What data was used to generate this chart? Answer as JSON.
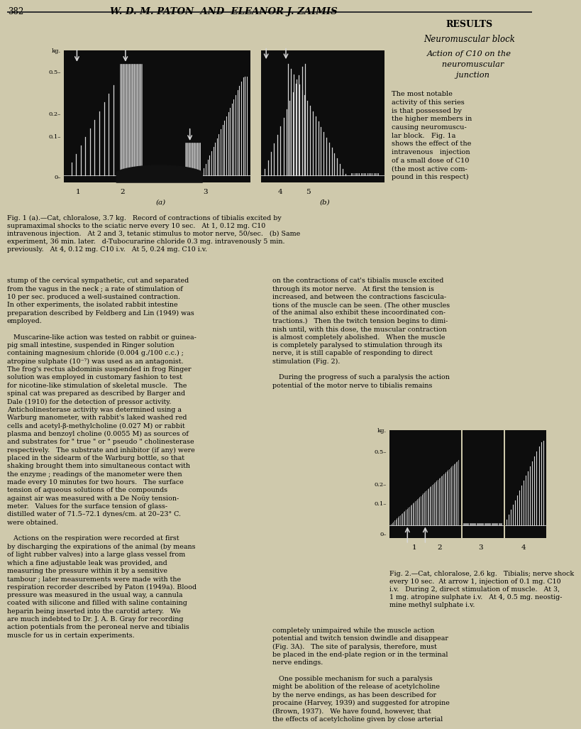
{
  "page_bg": "#cfc9ac",
  "fig_bg": "#0d0d0d",
  "fig_line_color": "#d8d8d8",
  "page_number": "382",
  "header_title": "W. D. M. PATON  AND  ELEANOR J. ZAIMIS",
  "results_heading": "RESULTS",
  "neuromuscular_heading": "Neuromuscular block",
  "action_heading": "Action of C10 on the\n   neuromuscular\n   junction",
  "right_body_text": "The most notable\nactivity of this series\nis that possessed by\nthe higher members in\ncausing neuromuscu-\nlar block.   Fig. 1a\nshows the effect of the\nintravenous   injection\nof a small dose of C10\n(the most active com-\npound in this respect)",
  "fig1_caption": "Fig. 1 (a).—Cat, chloralose, 3.7 kg.   Record of contractions of tibialis excited by\nsupramaximal shocks to the sciatic nerve every 10 sec.   At 1, 0.12 mg. C10\nintravenous injection.   At 2 and 3, tetanic stimulus to motor nerve, 50/sec.   (b) Same\nexperiment, 36 min. later.   d-Tubocurarine chloride 0.3 mg. intravenously 5 min.\npreviously.   At 4, 0.12 mg. C10 i.v.   At 5, 0.24 mg. C10 i.v.",
  "fig2_caption": "Fig. 2.—Cat, chloralose, 2.6 kg.   Tibialis; nerve shock\nevery 10 sec.  At arrow 1, injection of 0.1 mg. C10\ni.v.   During 2, direct stimulation of muscle.   At 3,\n1 mg. atropine sulphate i.v.   At 4, 0.5 mg. neostig-\nmine methyl sulphate i.v.",
  "left_col_text": "stump of the cervical sympathetic, cut and separated\nfrom the vagus in the neck ; a rate of stimulation of\n10 per sec. produced a well-sustained contraction.\nIn other experiments, the isolated rabbit intestine\npreparation described by Feldberg and Lin (1949) was\nemployed.\n\n   Muscarine-like action was tested on rabbit or guinea-\npig small intestine, suspended in Ringer solution\ncontaining magnesium chloride (0.004 g./100 c.c.) ;\natropine sulphate (10⁻⁷) was used as an antagonist.\nThe frog's rectus abdominis suspended in frog Ringer\nsolution was employed in customary fashion to test\nfor nicotine-like stimulation of skeletal muscle.   The\nspinal cat was prepared as described by Barger and\nDale (1910) for the detection of pressor activity.\nAnticholinesterase activity was determined using a\nWarburg manometer, with rabbit's laked washed red\ncells and acetyl-β-methylcholine (0.027 M) or rabbit\nplasma and benzoyl choline (0.0055 M) as sources of\nand substrates for \" true \" or \" pseudo \" cholinesterase\nrespectively.   The substrate and inhibitor (if any) were\nplaced in the sidearm of the Warburg bottle, so that\nshaking brought them into simultaneous contact with\nthe enzyme ; readings of the manometer were then\nmade every 10 minutes for two hours.   The surface\ntension of aqueous solutions of the compounds\nagainst air was measured with a De Noüy tension-\nmeter.   Values for the surface tension of glass-\ndistilled water of 71.5–72.1 dynes/cm. at 20–23° C.\nwere obtained.\n\n   Actions on the respiration were recorded at first\nby discharging the expirations of the animal (by means\nof light rubber valves) into a large glass vessel from\nwhich a fine adjustable leak was provided, and\nmeasuring the pressure within it by a sensitive\ntambour ; later measurements were made with the\nrespiration recorder described by Paton (1949a). Blood\npressure was measured in the usual way, a cannula\ncoated with silicone and filled with saline containing\nheparin being inserted into the carotid artery.   We\nare much indebted to Dr. J. A. B. Gray for recording\naction potentials from the peroneal nerve and tibialis\nmuscle for us in certain experiments.",
  "right_col_text_top": "on the contractions of cat's tibialis muscle excited\nthrough its motor nerve.   At first the tension is\nincreased, and between the contractions fascicula-\ntions of the muscle can be seen. (The other muscles\nof the animal also exhibit these incoordinated con-\ntractions.)   Then the twitch tension begins to dimi-\nnish until, with this dose, the muscular contraction\nis almost completely abolished.   When the muscle\nis completely paralysed to stimulation through its\nnerve, it is still capable of responding to direct\nstimulation (Fig. 2).\n\n   During the progress of such a paralysis the action\npotential of the motor nerve to tibialis remains",
  "right_col_text_bottom": "completely unimpaired while the muscle action\npotential and twitch tension dwindle and disappear\n(Fig. 3A).   The site of paralysis, therefore, must\nbe placed in the end-plate region or in the terminal\nnerve endings.\n\n   One possible mechanism for such a paralysis\nmight be abolition of the release of acetylcholine\nby the nerve endings, as has been described for\nprocaine (Harvey, 1939) and suggested for atropine\n(Brown, 1937).   We have found, however, that\nthe effects of acetylcholine given by close arterial",
  "ytick_labels": [
    "kg.",
    "0.5–",
    "0.2–",
    "0.1–",
    "0–"
  ]
}
